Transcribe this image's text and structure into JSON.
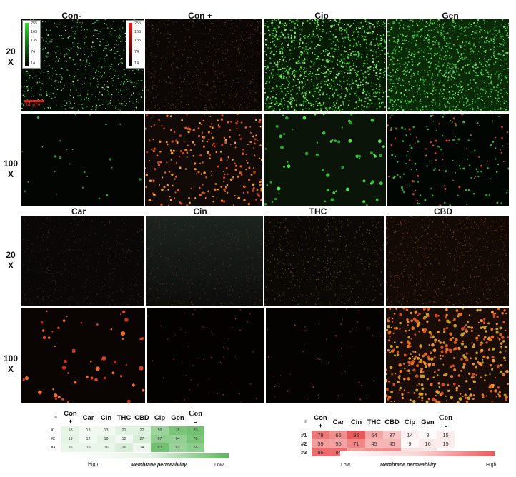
{
  "top_block": {
    "columns": [
      "Con-",
      "Con +",
      "Cip",
      "Gen"
    ],
    "rows": [
      {
        "mag": "20",
        "unit": "X"
      },
      {
        "mag": "100",
        "unit": "X"
      }
    ]
  },
  "bottom_block": {
    "columns": [
      "Car",
      "Cin",
      "THC",
      "CBD"
    ],
    "rows": [
      {
        "mag": "20",
        "unit": "X"
      },
      {
        "mag": "100",
        "unit": "X"
      }
    ]
  },
  "scale_bar": {
    "label": "34 μm",
    "color": "#e2231a"
  },
  "colorbar_green": {
    "ticks": [
      "255",
      "165",
      "135",
      "74",
      "14"
    ],
    "color": "#2ee02e"
  },
  "colorbar_red": {
    "ticks": [
      "255",
      "165",
      "135",
      "74",
      "14"
    ],
    "color": "#e5201a"
  },
  "green_table": {
    "n_label": "n",
    "headers": [
      "Con +",
      "Car",
      "Cin",
      "THC",
      "CBD",
      "Cip",
      "Gen",
      "Con -"
    ],
    "rows": [
      {
        "id": "#1",
        "values": [
          18,
          13,
          13,
          21,
          22,
          59,
          78,
          83
        ]
      },
      {
        "id": "#2",
        "values": [
          19,
          12,
          19,
          12,
          27,
          67,
          64,
          78
        ]
      },
      {
        "id": "#3",
        "values": [
          16,
          16,
          16,
          26,
          14,
          83,
          62,
          68
        ]
      }
    ],
    "legend": {
      "left": "High",
      "center": "Membrane permeability",
      "right": "Low"
    },
    "accent": "#5cb85c"
  },
  "red_table": {
    "n_label": "n",
    "headers": [
      "Con +",
      "Car",
      "Cin",
      "THC",
      "CBD",
      "Cip",
      "Gen",
      "Con -"
    ],
    "rows": [
      {
        "id": "#1",
        "values": [
          79,
          66,
          95,
          54,
          37,
          14,
          8,
          15
        ]
      },
      {
        "id": "#2",
        "values": [
          59,
          55,
          71,
          45,
          45,
          9,
          16,
          15
        ]
      },
      {
        "id": "#3",
        "values": [
          86,
          84,
          57,
          64,
          68,
          21,
          20,
          7
        ]
      }
    ],
    "legend": {
      "left": "Low",
      "center": "Membrane permeability",
      "right": "High"
    },
    "accent": "#ea5a5a"
  }
}
